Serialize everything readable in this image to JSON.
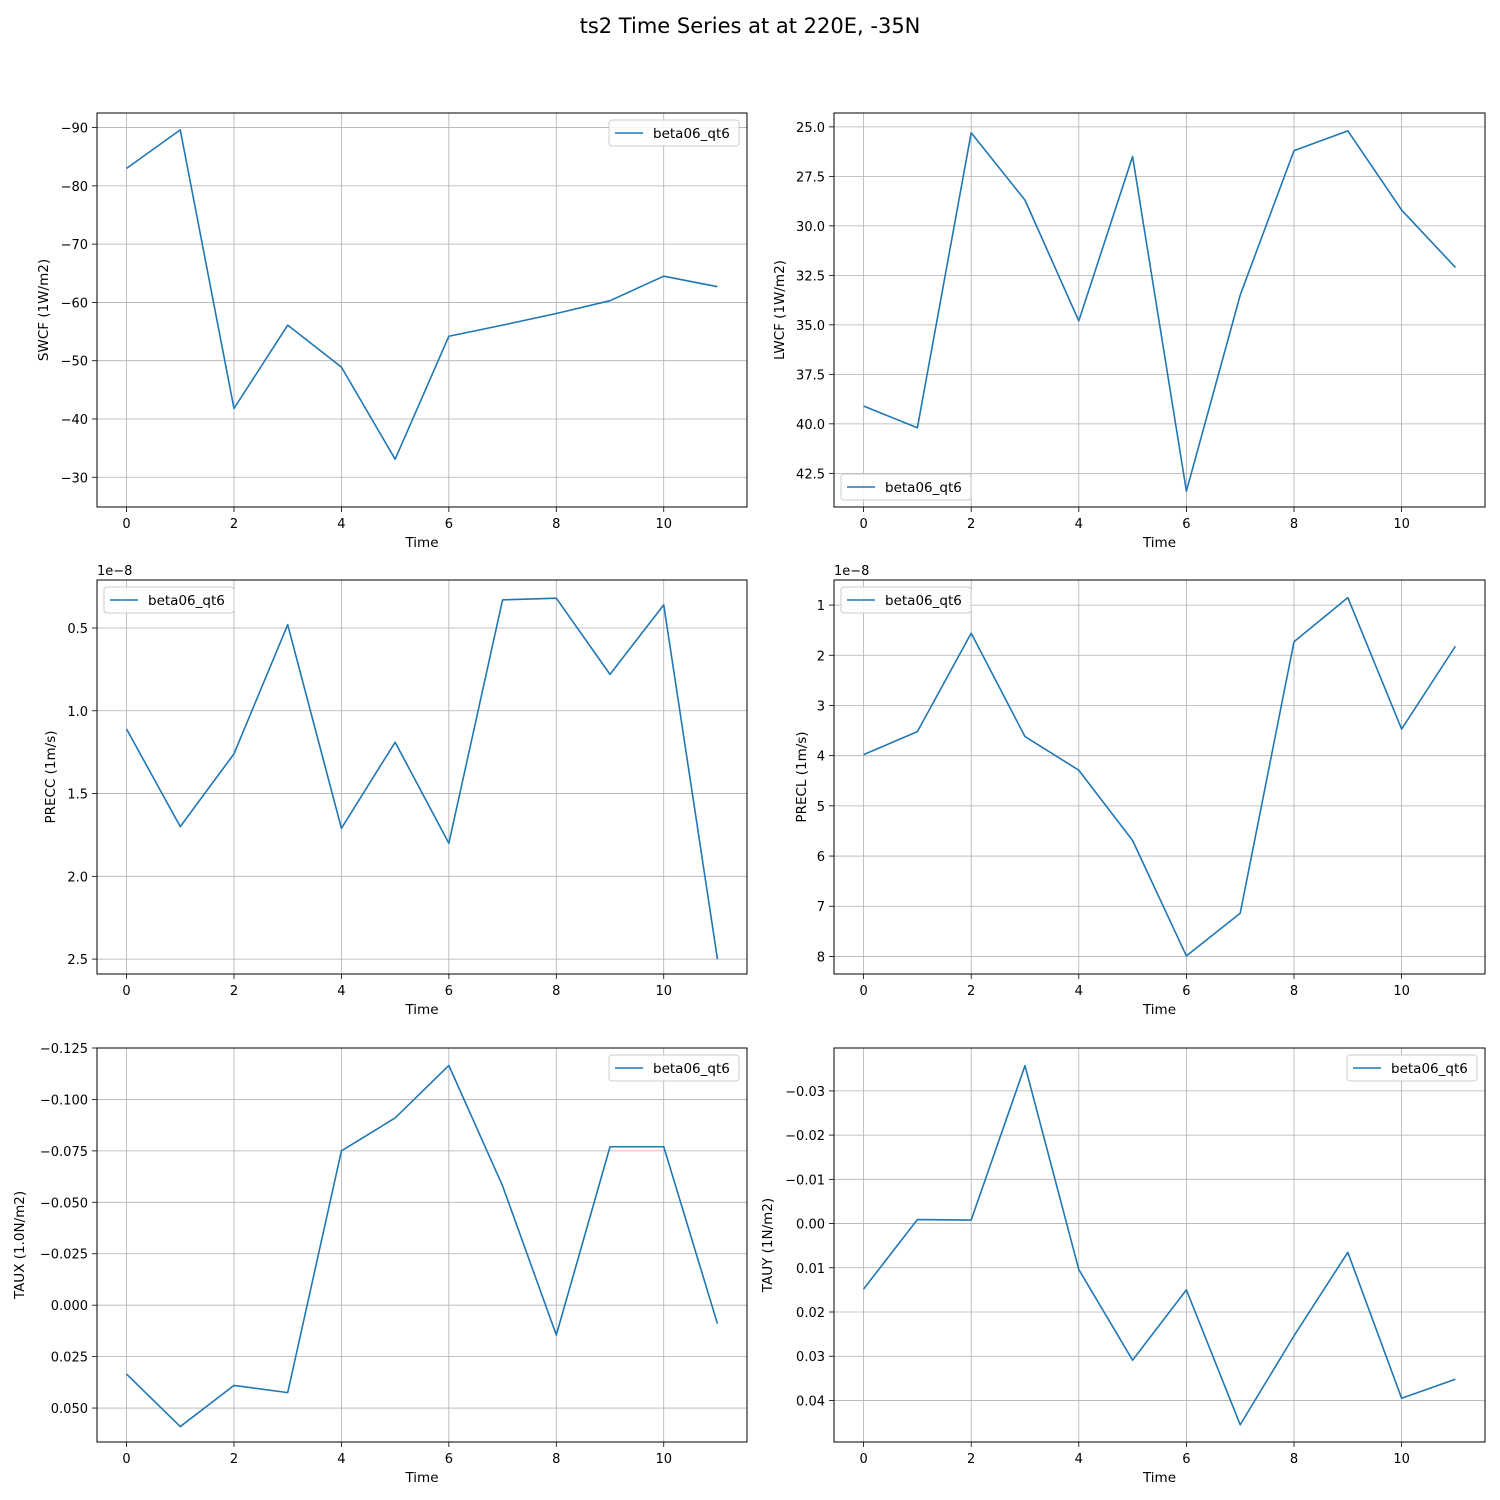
{
  "figure": {
    "title": "ts2 Time Series at at 220E, -35N"
  },
  "chart_data": [
    {
      "type": "line",
      "title": "",
      "xlabel": "Time",
      "ylabel": "SWCF (1W/m2)",
      "xlim": [
        -0.55,
        11.55
      ],
      "ylim": [
        -24.9,
        -92.5
      ],
      "xticks": [
        0,
        2,
        4,
        6,
        8,
        10
      ],
      "yticks": [
        -90,
        -80,
        -70,
        -60,
        -50,
        -40,
        -30
      ],
      "ytick_labels": [
        "−90",
        "−80",
        "−70",
        "−60",
        "−50",
        "−40",
        "−30"
      ],
      "offset_label": "",
      "legend": "upper right",
      "grid": true,
      "x": [
        0,
        1,
        2,
        3,
        4,
        5,
        6,
        7,
        8,
        9,
        10,
        11
      ],
      "series": [
        {
          "name": "beta06_qt6",
          "color": "#1f77b4",
          "values": [
            -83.0,
            -89.6,
            -41.8,
            -56.1,
            -48.9,
            -33.1,
            -54.2,
            -56.1,
            -58.1,
            -60.3,
            -64.5,
            -62.7
          ]
        }
      ]
    },
    {
      "type": "line",
      "title": "",
      "xlabel": "Time",
      "ylabel": "LWCF (1W/m2)",
      "xlim": [
        -0.55,
        11.55
      ],
      "ylim": [
        44.2,
        24.3
      ],
      "xticks": [
        0,
        2,
        4,
        6,
        8,
        10
      ],
      "yticks": [
        25.0,
        27.5,
        30.0,
        32.5,
        35.0,
        37.5,
        40.0,
        42.5
      ],
      "ytick_labels": [
        "25.0",
        "27.5",
        "30.0",
        "32.5",
        "35.0",
        "37.5",
        "40.0",
        "42.5"
      ],
      "offset_label": "",
      "legend": "lower left",
      "grid": true,
      "x": [
        0,
        1,
        2,
        3,
        4,
        5,
        6,
        7,
        8,
        9,
        10,
        11
      ],
      "series": [
        {
          "name": "beta06_qt6",
          "color": "#1f77b4",
          "values": [
            39.1,
            40.2,
            25.3,
            28.7,
            34.8,
            26.5,
            43.4,
            33.5,
            26.2,
            25.2,
            29.2,
            32.1
          ]
        }
      ]
    },
    {
      "type": "line",
      "title": "",
      "xlabel": "Time",
      "ylabel": "PRECC (1m/s)",
      "xlim": [
        -0.55,
        11.55
      ],
      "ylim": [
        2.59e-08,
        2.1e-09
      ],
      "xticks": [
        0,
        2,
        4,
        6,
        8,
        10
      ],
      "yticks": [
        5e-09,
        1e-08,
        1.5e-08,
        2e-08,
        2.5e-08
      ],
      "ytick_labels": [
        "0.5",
        "1.0",
        "1.5",
        "2.0",
        "2.5"
      ],
      "offset_label": "1e−8",
      "legend": "upper left",
      "grid": true,
      "x": [
        0,
        1,
        2,
        3,
        4,
        5,
        6,
        7,
        8,
        9,
        10,
        11
      ],
      "series": [
        {
          "name": "beta06_qt6",
          "color": "#1f77b4",
          "values": [
            1.11e-08,
            1.7e-08,
            1.26e-08,
            4.8e-09,
            1.71e-08,
            1.19e-08,
            1.8e-08,
            3.3e-09,
            3.2e-09,
            7.8e-09,
            3.6e-09,
            2.5e-08
          ]
        }
      ]
    },
    {
      "type": "line",
      "title": "",
      "xlabel": "Time",
      "ylabel": "PRECL (1m/s)",
      "xlim": [
        -0.55,
        11.55
      ],
      "ylim": [
        8.35e-08,
        5e-09
      ],
      "xticks": [
        0,
        2,
        4,
        6,
        8,
        10
      ],
      "yticks": [
        1e-08,
        2e-08,
        3e-08,
        4e-08,
        5e-08,
        6e-08,
        7e-08,
        8e-08
      ],
      "ytick_labels": [
        "1",
        "2",
        "3",
        "4",
        "5",
        "6",
        "7",
        "8"
      ],
      "offset_label": "1e−8",
      "legend": "upper left",
      "grid": true,
      "x": [
        0,
        1,
        2,
        3,
        4,
        5,
        6,
        7,
        8,
        9,
        10,
        11
      ],
      "series": [
        {
          "name": "beta06_qt6",
          "color": "#1f77b4",
          "values": [
            3.98e-08,
            3.52e-08,
            1.56e-08,
            3.62e-08,
            4.29e-08,
            5.69e-08,
            7.99e-08,
            7.14e-08,
            1.73e-08,
            8.5e-09,
            3.47e-08,
            1.82e-08
          ]
        }
      ]
    },
    {
      "type": "line",
      "title": "",
      "xlabel": "Time",
      "ylabel": "TAUX (1.0N/m2)",
      "xlim": [
        -0.55,
        11.55
      ],
      "ylim": [
        0.0665,
        -0.125
      ],
      "xticks": [
        0,
        2,
        4,
        6,
        8,
        10
      ],
      "yticks": [
        -0.125,
        -0.1,
        -0.075,
        -0.05,
        -0.025,
        0.0,
        0.025,
        0.05
      ],
      "ytick_labels": [
        "−0.125",
        "−0.100",
        "−0.075",
        "−0.050",
        "−0.025",
        "0.000",
        "0.025",
        "0.050"
      ],
      "offset_label": "",
      "legend": "upper right",
      "grid": true,
      "x": [
        0,
        1,
        2,
        3,
        4,
        5,
        6,
        7,
        8,
        9,
        10,
        11
      ],
      "series": [
        {
          "name": "beta06_qt6",
          "color": "#1f77b4",
          "values": [
            0.0335,
            0.059,
            0.039,
            0.0425,
            -0.075,
            -0.091,
            -0.1165,
            -0.058,
            0.0145,
            -0.077,
            -0.077,
            0.009
          ]
        }
      ]
    },
    {
      "type": "line",
      "title": "",
      "xlabel": "Time",
      "ylabel": "TAUY (1N/m2)",
      "xlim": [
        -0.55,
        11.55
      ],
      "ylim": [
        0.0494,
        -0.0397
      ],
      "xticks": [
        0,
        2,
        4,
        6,
        8,
        10
      ],
      "yticks": [
        -0.03,
        -0.02,
        -0.01,
        0.0,
        0.01,
        0.02,
        0.03,
        0.04
      ],
      "ytick_labels": [
        "−0.03",
        "−0.02",
        "−0.01",
        "0.00",
        "0.01",
        "0.02",
        "0.03",
        "0.04"
      ],
      "offset_label": "",
      "legend": "upper right",
      "grid": true,
      "x": [
        0,
        1,
        2,
        3,
        4,
        5,
        6,
        7,
        8,
        9,
        10,
        11
      ],
      "series": [
        {
          "name": "beta06_qt6",
          "color": "#1f77b4",
          "values": [
            0.0148,
            -0.0009,
            -0.0008,
            -0.0357,
            0.0104,
            0.0309,
            0.015,
            0.0455,
            0.0254,
            0.0065,
            0.0395,
            0.0352
          ]
        }
      ]
    }
  ]
}
